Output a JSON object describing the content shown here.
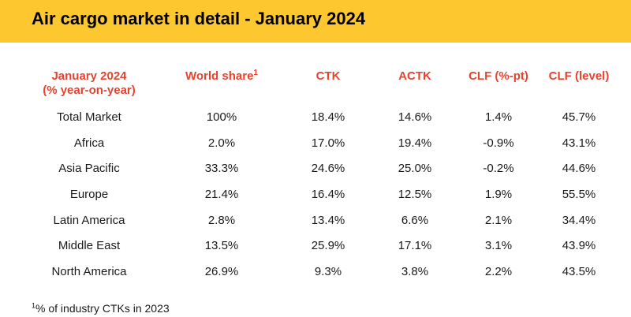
{
  "title": "Air cargo market in detail - January 2024",
  "header": {
    "region_line1": "January 2024",
    "region_line2": "(% year-on-year)",
    "world_share": "World share",
    "world_share_sup": "1",
    "ctk": "CTK",
    "actk": "ACTK",
    "clf_pt": "CLF (%-pt)",
    "clf_level": "CLF (level)"
  },
  "rows": [
    {
      "region": "Total Market",
      "world_share": "100%",
      "ctk": "18.4%",
      "actk": "14.6%",
      "clf_pt": "1.4%",
      "clf_level": "45.7%"
    },
    {
      "region": "Africa",
      "world_share": "2.0%",
      "ctk": "17.0%",
      "actk": "19.4%",
      "clf_pt": "-0.9%",
      "clf_level": "43.1%"
    },
    {
      "region": "Asia Pacific",
      "world_share": "33.3%",
      "ctk": "24.6%",
      "actk": "25.0%",
      "clf_pt": "-0.2%",
      "clf_level": "44.6%"
    },
    {
      "region": "Europe",
      "world_share": "21.4%",
      "ctk": "16.4%",
      "actk": "12.5%",
      "clf_pt": "1.9%",
      "clf_level": "55.5%"
    },
    {
      "region": "Latin America",
      "world_share": "2.8%",
      "ctk": "13.4%",
      "actk": "6.6%",
      "clf_pt": "2.1%",
      "clf_level": "34.4%"
    },
    {
      "region": "Middle East",
      "world_share": "13.5%",
      "ctk": "25.9%",
      "actk": "17.1%",
      "clf_pt": "3.1%",
      "clf_level": "43.9%"
    },
    {
      "region": "North America",
      "world_share": "26.9%",
      "ctk": "9.3%",
      "actk": "3.8%",
      "clf_pt": "2.2%",
      "clf_level": "43.5%"
    }
  ],
  "footnote": {
    "sup": "1",
    "text": "% of industry CTKs in 2023"
  },
  "colors": {
    "banner": "#fdc82f",
    "header_text": "#e8432e",
    "body_text": "#1a1a1a"
  }
}
